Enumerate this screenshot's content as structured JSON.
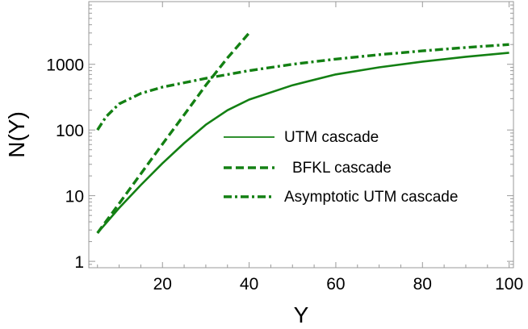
{
  "chart_data": {
    "type": "line",
    "title": "",
    "xlabel": "Y",
    "ylabel": "N(Y)",
    "xscale": "linear",
    "yscale": "log",
    "xlim": [
      3,
      101
    ],
    "ylim": [
      0.8,
      9000
    ],
    "xticks": [
      20,
      40,
      60,
      80,
      100
    ],
    "yticks": [
      1,
      10,
      100,
      1000
    ],
    "ytick_labels": [
      "1",
      "10",
      "100",
      "1000"
    ],
    "grid": false,
    "legend_position": "center-right",
    "series_color": "#138013",
    "series": [
      {
        "name": "UTM cascade",
        "style": "solid",
        "x": [
          5,
          10,
          15,
          20,
          25,
          30,
          35,
          40,
          50,
          60,
          70,
          80,
          90,
          100
        ],
        "y": [
          2.7,
          6.5,
          14.5,
          31,
          63,
          120,
          200,
          290,
          480,
          700,
          900,
          1100,
          1300,
          1500
        ]
      },
      {
        "name": "BFKL cascade",
        "style": "dashed",
        "x": [
          5,
          10,
          15,
          20,
          25,
          30,
          35,
          40
        ],
        "y": [
          2.7,
          7.6,
          21.5,
          61,
          170,
          480,
          1250,
          3000
        ]
      },
      {
        "name": "Asymptotic UTM cascade",
        "style": "dashdot",
        "x": [
          5,
          7,
          10,
          15,
          20,
          30,
          40,
          50,
          60,
          70,
          80,
          90,
          100
        ],
        "y": [
          100,
          160,
          250,
          360,
          450,
          610,
          800,
          1000,
          1200,
          1400,
          1600,
          1800,
          2000
        ]
      }
    ]
  }
}
